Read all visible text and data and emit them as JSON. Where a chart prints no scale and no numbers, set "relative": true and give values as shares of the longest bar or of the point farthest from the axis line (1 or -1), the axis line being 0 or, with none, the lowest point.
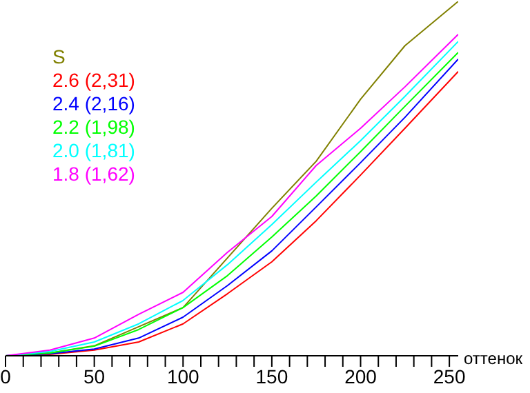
{
  "chart_data": {
    "type": "line",
    "relative": true,
    "xlabel": "оттенок",
    "legend": "top left",
    "grid": false,
    "marker": "none",
    "line_style": "solid",
    "xlim": [
      0,
      255
    ],
    "xticks": [
      0,
      {
        "value": 10,
        "label": null
      },
      {
        "value": 20,
        "label": null
      },
      {
        "value": 30,
        "label": null
      },
      {
        "value": 40,
        "label": null
      },
      50,
      {
        "value": 60,
        "label": null
      },
      {
        "value": 70,
        "label": null
      },
      {
        "value": 80,
        "label": null
      },
      {
        "value": 90,
        "label": null
      },
      100,
      {
        "value": 110,
        "label": null
      },
      {
        "value": 120,
        "label": null
      },
      {
        "value": 130,
        "label": null
      },
      {
        "value": 140,
        "label": null
      },
      150,
      {
        "value": 160,
        "label": null
      },
      {
        "value": 170,
        "label": null
      },
      {
        "value": 180,
        "label": null
      },
      {
        "value": 190,
        "label": null
      },
      200,
      {
        "value": 210,
        "label": null
      },
      {
        "value": 220,
        "label": null
      },
      {
        "value": 230,
        "label": null
      },
      {
        "value": 240,
        "label": null
      },
      250
    ],
    "x": [
      0,
      25,
      50,
      75,
      100,
      125,
      150,
      175,
      200,
      225,
      255
    ],
    "series": [
      {
        "name": "S",
        "color": "#808000",
        "values": [
          0,
          0.008,
          0.028,
          0.082,
          0.136,
          0.276,
          0.416,
          0.549,
          0.724,
          0.875,
          1
        ]
      },
      {
        "name": "2.6 (2,31)",
        "color": "#ff0000",
        "values": [
          0,
          0.004,
          0.016,
          0.039,
          0.09,
          0.175,
          0.265,
          0.381,
          0.51,
          0.642,
          0.802
        ]
      },
      {
        "name": "2.4 (2,16)",
        "color": "#0000ff",
        "values": [
          0,
          0.006,
          0.019,
          0.05,
          0.109,
          0.198,
          0.296,
          0.42,
          0.545,
          0.673,
          0.837
        ]
      },
      {
        "name": "2.2 (1,98)",
        "color": "#00ff00",
        "values": [
          0,
          0.008,
          0.027,
          0.074,
          0.136,
          0.226,
          0.335,
          0.451,
          0.576,
          0.704,
          0.856
        ]
      },
      {
        "name": "2.0 (1,81)",
        "color": "#00ffff",
        "values": [
          0,
          0.012,
          0.039,
          0.09,
          0.156,
          0.257,
          0.37,
          0.49,
          0.607,
          0.732,
          0.887
        ]
      },
      {
        "name": "1.8 (1,62)",
        "color": "#ff00ff",
        "values": [
          0,
          0.016,
          0.05,
          0.117,
          0.179,
          0.292,
          0.393,
          0.537,
          0.642,
          0.759,
          0.907
        ]
      }
    ]
  }
}
